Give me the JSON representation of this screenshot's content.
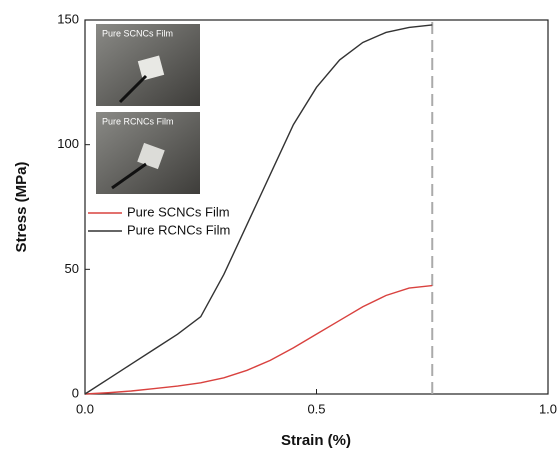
{
  "chart_data": {
    "type": "line",
    "x_label": "Strain (%)",
    "y_label": "Stress (MPa)",
    "x": [
      0,
      0.05,
      0.1,
      0.15,
      0.2,
      0.25,
      0.3,
      0.35,
      0.4,
      0.45,
      0.5,
      0.55,
      0.6,
      0.65,
      0.7,
      0.75
    ],
    "series": [
      {
        "name": "Pure SCNCs Film",
        "color": "#d9423f",
        "values": [
          0,
          0.5,
          1.2,
          2.2,
          3.2,
          4.5,
          6.5,
          9.5,
          13.5,
          18.5,
          24,
          29.5,
          35,
          39.5,
          42.5,
          43.5
        ]
      },
      {
        "name": "Pure RCNCs Film",
        "color": "#333333",
        "values": [
          0,
          6,
          12,
          18,
          24,
          31,
          48,
          68,
          88,
          108,
          123,
          134,
          141,
          145,
          147,
          148
        ]
      }
    ],
    "xlim": [
      0,
      1.0
    ],
    "ylim": [
      0,
      150
    ],
    "xticks": [
      {
        "value": 0,
        "label": "0.0"
      },
      {
        "value": 0.5,
        "label": "0.5"
      },
      {
        "value": 1.0,
        "label": "1.0"
      }
    ],
    "yticks": [
      0,
      50,
      100,
      150
    ],
    "reference_line_x": 0.75,
    "inset_labels": [
      "Pure SCNCs Film",
      "Pure RCNCs Film"
    ],
    "legend": "upper left"
  }
}
